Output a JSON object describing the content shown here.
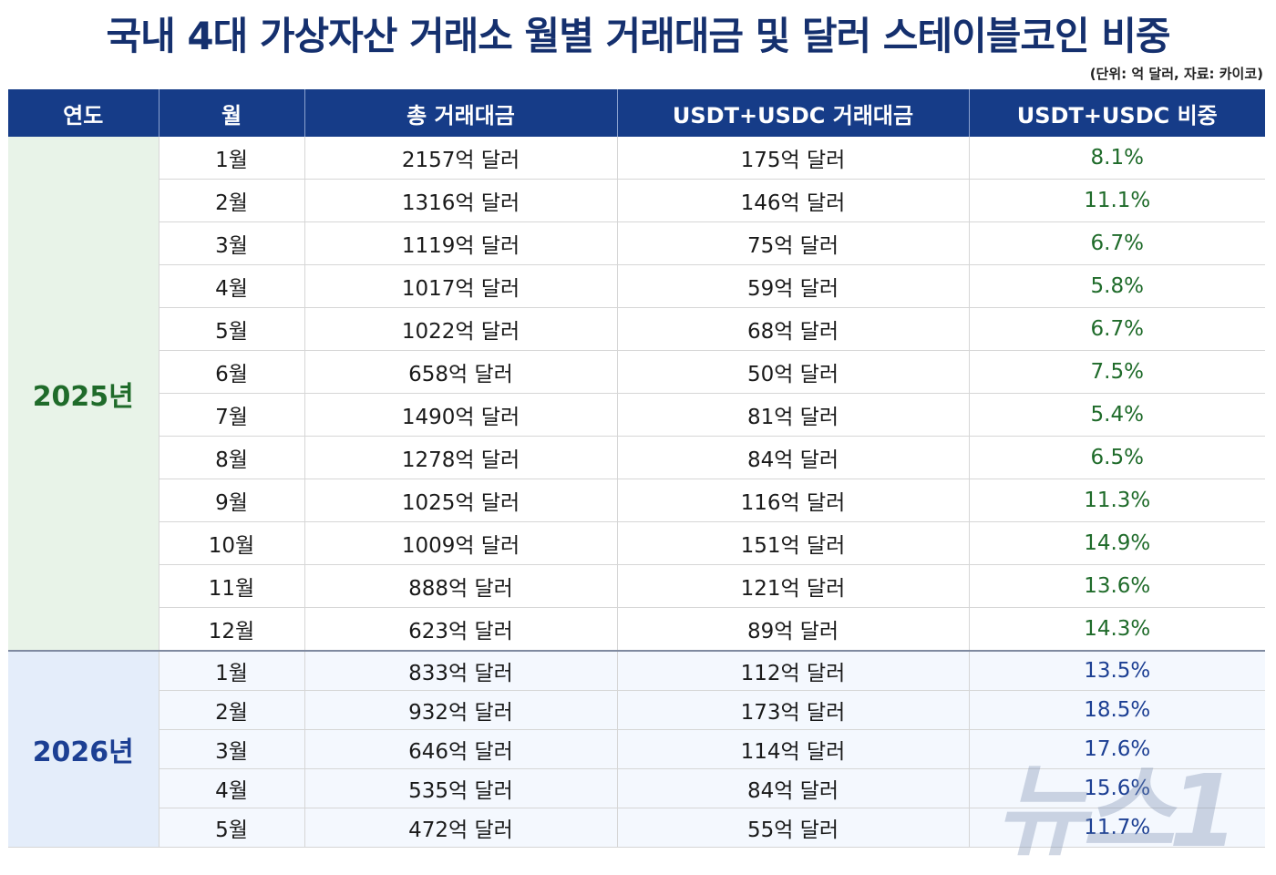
{
  "title": "국내 4대 가상자산 거래소 월별 거래대금 및 달러 스테이블코인 비중",
  "source_note": "(단위: 억 달러, 자료: 카이코)",
  "watermark": "뉴스1",
  "colors": {
    "header_bg": "#163c88",
    "year_2025": "#1f6b2a",
    "year_2026": "#1c3f93"
  },
  "chart_data": {
    "type": "table",
    "columns": [
      "연도",
      "월",
      "총 거래대금",
      "USDT+USDC 거래대금",
      "USDT+USDC 비중"
    ],
    "groups": [
      {
        "year": "2025년",
        "rows": [
          {
            "month": "1월",
            "total": "2157억 달러",
            "stable": "175억 달러",
            "share": "8.1%"
          },
          {
            "month": "2월",
            "total": "1316억 달러",
            "stable": "146억 달러",
            "share": "11.1%"
          },
          {
            "month": "3월",
            "total": "1119억 달러",
            "stable": "75억 달러",
            "share": "6.7%"
          },
          {
            "month": "4월",
            "total": "1017억 달러",
            "stable": "59억 달러",
            "share": "5.8%"
          },
          {
            "month": "5월",
            "total": "1022억 달러",
            "stable": "68억 달러",
            "share": "6.7%"
          },
          {
            "month": "6월",
            "total": "658억 달러",
            "stable": "50억 달러",
            "share": "7.5%"
          },
          {
            "month": "7월",
            "total": "1490억 달러",
            "stable": "81억 달러",
            "share": "5.4%"
          },
          {
            "month": "8월",
            "total": "1278억 달러",
            "stable": "84억 달러",
            "share": "6.5%"
          },
          {
            "month": "9월",
            "total": "1025억 달러",
            "stable": "116억 달러",
            "share": "11.3%"
          },
          {
            "month": "10월",
            "total": "1009억 달러",
            "stable": "151억 달러",
            "share": "14.9%"
          },
          {
            "month": "11월",
            "total": "888억 달러",
            "stable": "121억 달러",
            "share": "13.6%"
          },
          {
            "month": "12월",
            "total": "623억 달러",
            "stable": "89억 달러",
            "share": "14.3%"
          }
        ]
      },
      {
        "year": "2026년",
        "rows": [
          {
            "month": "1월",
            "total": "833억 달러",
            "stable": "112억 달러",
            "share": "13.5%"
          },
          {
            "month": "2월",
            "total": "932억 달러",
            "stable": "173억 달러",
            "share": "18.5%"
          },
          {
            "month": "3월",
            "total": "646억 달러",
            "stable": "114억 달러",
            "share": "17.6%"
          },
          {
            "month": "4월",
            "total": "535억 달러",
            "stable": "84억 달러",
            "share": "15.6%"
          },
          {
            "month": "5월",
            "total": "472억 달러",
            "stable": "55억 달러",
            "share": "11.7%"
          }
        ]
      }
    ]
  }
}
